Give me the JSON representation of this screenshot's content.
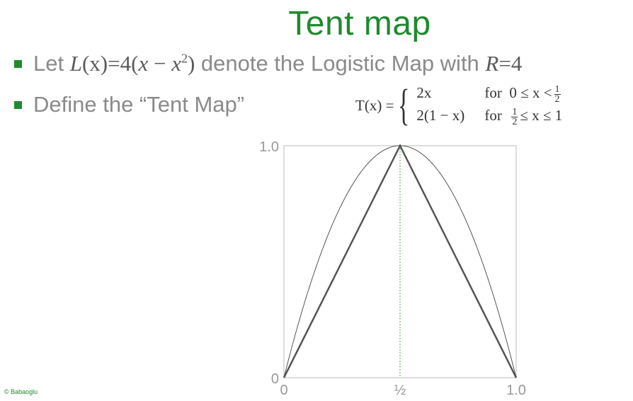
{
  "slide": {
    "title": "Tent map",
    "bullet1": {
      "prefix": "Let ",
      "func": "L",
      "arg": "(x)",
      "eq": "=4(",
      "var1": "x",
      "minus": " − ",
      "var2": "x",
      "sup": "2",
      "close": ")",
      "suffix": " denote the Logistic Map with ",
      "param": "R",
      "param_value": "=4"
    },
    "bullet2": "Define the “Tent Map”",
    "formula": {
      "lhs": "T(x) =",
      "case1_expr": "2x",
      "case1_cond_for": "for",
      "case1_cond": "0 ≤ x <",
      "case2_expr": "2(1 − x)",
      "case2_cond_for": "for",
      "case2_cond": "≤ x ≤ 1",
      "half_num": "1",
      "half_den": "2"
    },
    "copyright": "© Babaoglu",
    "colors": {
      "accent": "#1f8a2e",
      "text": "#8a8a8a",
      "curve": "#555555",
      "dotted": "#1f8a2e"
    }
  },
  "chart_data": {
    "type": "line",
    "xlim": [
      0,
      1
    ],
    "ylim": [
      0,
      1
    ],
    "x_ticks": [
      {
        "value": 0,
        "label": "0"
      },
      {
        "value": 0.5,
        "label": "½"
      },
      {
        "value": 1,
        "label": "1.0"
      }
    ],
    "y_ticks": [
      {
        "value": 0,
        "label": "0"
      },
      {
        "value": 1,
        "label": "1.0"
      }
    ],
    "series": [
      {
        "kind": "tent",
        "points": [
          [
            0,
            0
          ],
          [
            0.5,
            1
          ],
          [
            1,
            0
          ]
        ]
      },
      {
        "kind": "logistic",
        "r": 4
      }
    ],
    "guide_x": 0.5,
    "grid": false
  }
}
